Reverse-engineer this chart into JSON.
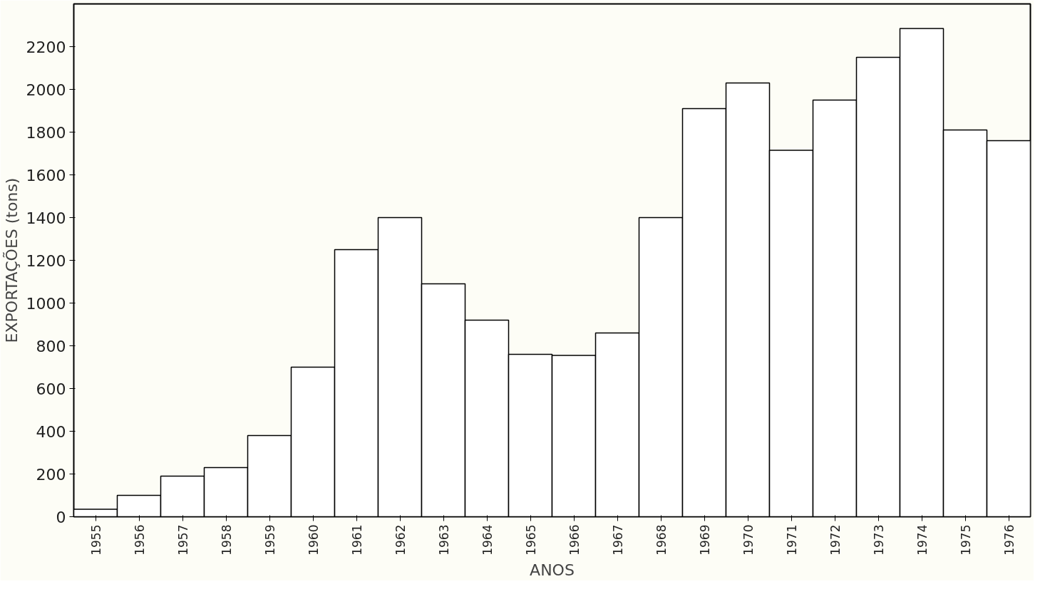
{
  "chart_data": {
    "type": "bar",
    "xlabel": "ANOS",
    "ylabel": "EXPORTAÇÕES (tons)",
    "categories": [
      "1955",
      "1956",
      "1957",
      "1958",
      "1959",
      "1960",
      "1961",
      "1962",
      "1963",
      "1964",
      "1965",
      "1966",
      "1967",
      "1968",
      "1969",
      "1970",
      "1971",
      "1972",
      "1973",
      "1974",
      "1975",
      "1976"
    ],
    "values": [
      35,
      100,
      190,
      230,
      380,
      700,
      1250,
      1400,
      1090,
      920,
      760,
      755,
      860,
      1400,
      1910,
      2030,
      1715,
      1950,
      2150,
      2285,
      1810,
      1760
    ],
    "color": "#ffffff",
    "ylim": [
      0,
      2400
    ],
    "yticks": [
      0,
      200,
      400,
      600,
      800,
      1000,
      1200,
      1400,
      1600,
      1800,
      2000,
      2200
    ],
    "grid": false
  }
}
